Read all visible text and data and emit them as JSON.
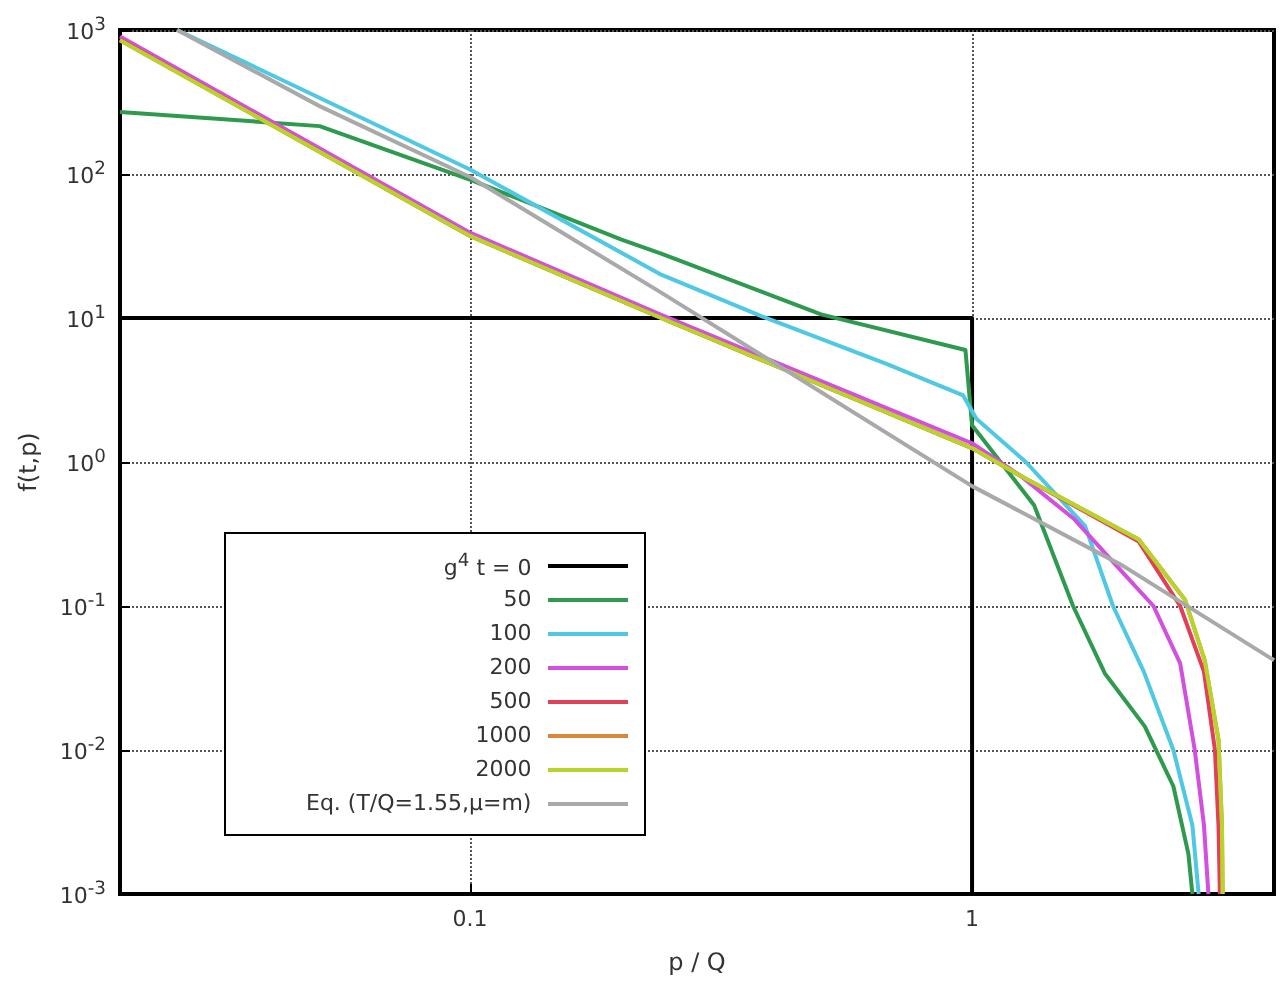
{
  "chart_data": {
    "type": "line",
    "xlabel": "p / Q",
    "ylabel": "f(t,p)",
    "log": "xy",
    "grid": true,
    "legend": "bottom left",
    "marker": "none",
    "line_style": "solid",
    "xlim": [
      0.02,
      4
    ],
    "xticks": [
      0.1,
      1
    ],
    "ylim": [
      0.001,
      1000
    ],
    "yticks": [
      {
        "value": 0.001,
        "label": "10$^{-3}$"
      },
      {
        "value": 0.01,
        "label": "10$^{-2}$"
      },
      {
        "value": 0.1,
        "label": "10$^{-1}$"
      },
      {
        "value": 1,
        "label": "10$^{0}$"
      },
      {
        "value": 10,
        "label": "10$^{1}$"
      },
      {
        "value": 100,
        "label": "10$^{2}$"
      },
      {
        "value": 1000,
        "label": "10$^{3}$"
      }
    ],
    "series": [
      {
        "name": "g$^{4}$ t = 0",
        "color": "#000000",
        "x": [
          0.02,
          1,
          1
        ],
        "values": [
          10,
          10,
          0.001
        ]
      },
      {
        "name": "50",
        "color": "#2e9a4e",
        "x": [
          0.02,
          0.05,
          0.1,
          0.2,
          0.24,
          0.5,
          0.97,
          1,
          1.33,
          1.59,
          1.84,
          2.21,
          2.52,
          2.7,
          2.75
        ],
        "values": [
          270,
          215,
          91,
          35,
          28,
          10.6,
          6,
          1.8,
          0.5,
          0.1,
          0.034,
          0.0146,
          0.0056,
          0.0019,
          0.001
        ]
      },
      {
        "name": "100",
        "color": "#4fc8e4",
        "x": [
          0.026,
          0.1,
          0.24,
          0.38,
          0.675,
          0.96,
          1.02,
          1.28,
          1.68,
          1.91,
          2.2,
          2.52,
          2.75,
          2.83
        ],
        "values": [
          1000,
          107,
          20,
          10.3,
          4.8,
          2.9,
          2,
          1,
          0.36,
          0.1,
          0.035,
          0.01,
          0.003,
          0.001
        ]
      },
      {
        "name": "200",
        "color": "#d24fe0",
        "x": [
          0.02,
          0.1,
          0.24,
          1,
          1.25,
          1.6,
          2,
          2.3,
          2.6,
          2.78,
          2.9,
          2.96
        ],
        "values": [
          900,
          39,
          10.5,
          1.35,
          0.8,
          0.4,
          0.17,
          0.1,
          0.04,
          0.01,
          0.003,
          0.001
        ]
      },
      {
        "name": "500",
        "color": "#e0405a",
        "x": [
          0.02,
          0.1,
          0.24,
          1,
          1.25,
          2.15,
          2.6,
          2.9,
          3.05,
          3.1,
          3.12
        ],
        "values": [
          860,
          37,
          10,
          1.25,
          0.8,
          0.28,
          0.1,
          0.035,
          0.01,
          0.003,
          0.001
        ]
      },
      {
        "name": "1000",
        "color": "#d9873a",
        "x": [
          0.02,
          0.1,
          0.24,
          1,
          1.25,
          2.15,
          2.66,
          2.91,
          3.1,
          3.15,
          3.16
        ],
        "values": [
          850,
          37,
          10,
          1.25,
          0.8,
          0.29,
          0.11,
          0.042,
          0.0118,
          0.003,
          0.001
        ]
      },
      {
        "name": "2000",
        "color": "#b8d42a",
        "x": [
          0.02,
          0.1,
          0.24,
          1,
          1.25,
          2.15,
          2.66,
          2.91,
          3.1,
          3.15,
          3.16
        ],
        "values": [
          850,
          37,
          10,
          1.25,
          0.8,
          0.29,
          0.11,
          0.042,
          0.0118,
          0.003,
          0.001
        ]
      },
      {
        "name": "Eq. (T/Q=1.55,μ=m)",
        "color": "#a9a9a9",
        "x": [
          0.026,
          0.05,
          0.1,
          0.24,
          1,
          2,
          4
        ],
        "values": [
          1000,
          296,
          95,
          15,
          0.68,
          0.19,
          0.042
        ]
      }
    ]
  }
}
